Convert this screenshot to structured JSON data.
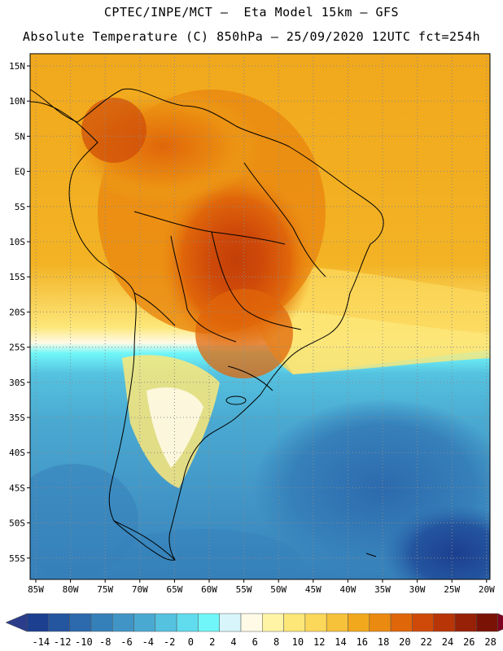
{
  "header": {
    "line1": "CPTEC/INPE/MCT –  Eta Model 15km – GFS",
    "line2": "Absolute Temperature (C) 850hPa – 25/09/2020 12UTC fct=254h"
  },
  "latitude_labels": [
    "15N",
    "10N",
    "5N",
    "EQ",
    "5S",
    "10S",
    "15S",
    "20S",
    "25S",
    "30S",
    "35S",
    "40S",
    "45S",
    "50S",
    "55S"
  ],
  "longitude_labels": [
    "85W",
    "80W",
    "75W",
    "70W",
    "65W",
    "60W",
    "55W",
    "50W",
    "45W",
    "40W",
    "35W",
    "30W",
    "25W",
    "20W"
  ],
  "colorbar": {
    "labels": [
      "-14",
      "-12",
      "-10",
      "-8",
      "-6",
      "-4",
      "-2",
      "0",
      "2",
      "4",
      "6",
      "8",
      "10",
      "12",
      "14",
      "16",
      "18",
      "20",
      "22",
      "24",
      "26",
      "28"
    ],
    "colors": [
      "#1c3f8f",
      "#24559f",
      "#2c6aad",
      "#3680ba",
      "#4195c6",
      "#4aa9d1",
      "#55c2e0",
      "#60dcee",
      "#70f6f8",
      "#d7f5fb",
      "#fffae6",
      "#fff4a6",
      "#fde779",
      "#fbd75a",
      "#f6c23a",
      "#f1a81c",
      "#ea8a10",
      "#e0660a",
      "#cf4a09",
      "#b83508",
      "#962107",
      "#7a1206"
    ],
    "left_arrow_color": "#2a3c8a",
    "right_arrow_color": "#800020"
  }
}
